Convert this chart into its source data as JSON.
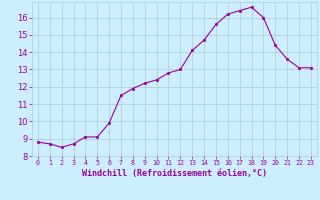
{
  "x": [
    0,
    1,
    2,
    3,
    4,
    5,
    6,
    7,
    8,
    9,
    10,
    11,
    12,
    13,
    14,
    15,
    16,
    17,
    18,
    19,
    20,
    21,
    22,
    23
  ],
  "y": [
    8.8,
    8.7,
    8.5,
    8.7,
    9.1,
    9.1,
    9.9,
    11.5,
    11.9,
    12.2,
    12.4,
    12.8,
    13.0,
    14.1,
    14.7,
    15.6,
    16.2,
    16.4,
    16.6,
    16.0,
    14.4,
    13.6,
    13.1,
    13.1
  ],
  "xlim": [
    -0.5,
    23.5
  ],
  "ylim": [
    8.0,
    16.9
  ],
  "yticks": [
    8,
    9,
    10,
    11,
    12,
    13,
    14,
    15,
    16
  ],
  "xtick_labels": [
    "0",
    "1",
    "2",
    "3",
    "4",
    "5",
    "6",
    "7",
    "8",
    "9",
    "10",
    "11",
    "12",
    "13",
    "14",
    "15",
    "16",
    "17",
    "18",
    "19",
    "20",
    "21",
    "22",
    "23"
  ],
  "xlabel": "Windchill (Refroidissement éolien,°C)",
  "line_color": "#990099",
  "marker_color": "#990099",
  "bg_color": "#cceeff",
  "grid_color": "#aacccc",
  "tick_color": "#990099",
  "xlabel_color": "#990099"
}
